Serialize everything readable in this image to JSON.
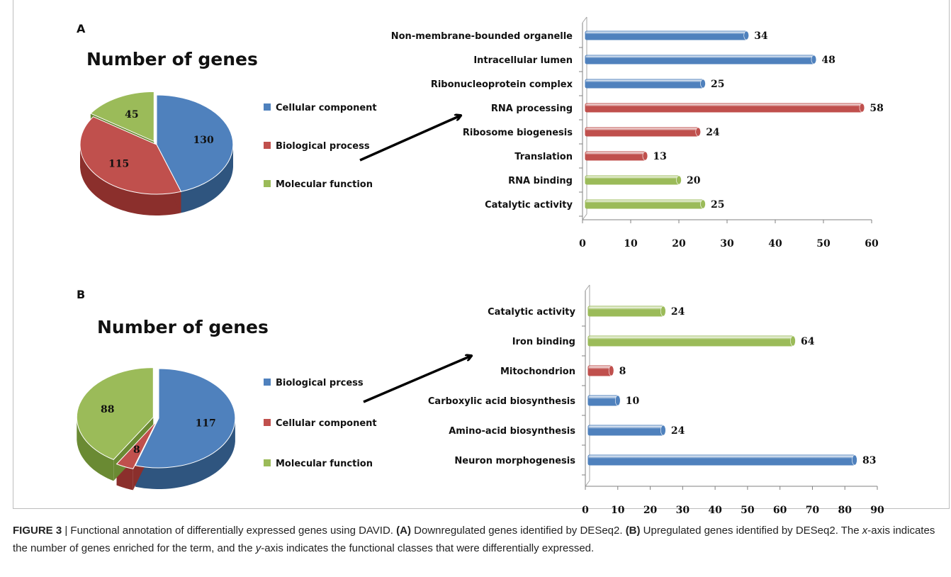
{
  "figure": {
    "panels": [
      {
        "id": "A",
        "label": "A",
        "pie": {
          "title": "Number of genes",
          "slices": [
            {
              "name": "Cellular component",
              "value": 130,
              "color": "#4f81bd",
              "side": "#2f557f"
            },
            {
              "name": "Biological process",
              "value": 115,
              "color": "#c0504d",
              "side": "#8b2f2c"
            },
            {
              "name": "Molecular function",
              "value": 45,
              "color": "#9bbb59",
              "side": "#6a8a33"
            }
          ]
        },
        "bars": {
          "xlim": [
            0,
            60
          ],
          "ticks": [
            0,
            10,
            20,
            30,
            40,
            50,
            60
          ],
          "items": [
            {
              "label": "Non-membrane-bounded organelle",
              "value": 34,
              "color": "#4f81bd"
            },
            {
              "label": "Intracellular lumen",
              "value": 48,
              "color": "#4f81bd"
            },
            {
              "label": "Ribonucleoprotein complex",
              "value": 25,
              "color": "#4f81bd"
            },
            {
              "label": "RNA processing",
              "value": 58,
              "color": "#c0504d"
            },
            {
              "label": "Ribosome biogenesis",
              "value": 24,
              "color": "#c0504d"
            },
            {
              "label": "Translation",
              "value": 13,
              "color": "#c0504d"
            },
            {
              "label": "RNA binding",
              "value": 20,
              "color": "#9bbb59"
            },
            {
              "label": "Catalytic activity",
              "value": 25,
              "color": "#9bbb59"
            }
          ]
        }
      },
      {
        "id": "B",
        "label": "B",
        "pie": {
          "title": "Number of genes",
          "slices": [
            {
              "name": "Biological prcess",
              "value": 117,
              "color": "#4f81bd",
              "side": "#2f557f"
            },
            {
              "name": "Cellular component",
              "value": 8,
              "color": "#c0504d",
              "side": "#8b2f2c"
            },
            {
              "name": "Molecular function",
              "value": 88,
              "color": "#9bbb59",
              "side": "#6a8a33"
            }
          ]
        },
        "bars": {
          "xlim": [
            0,
            90
          ],
          "ticks": [
            0,
            10,
            20,
            30,
            40,
            50,
            60,
            70,
            80,
            90
          ],
          "items": [
            {
              "label": "Catalytic activity",
              "value": 24,
              "color": "#9bbb59"
            },
            {
              "label": "Iron binding",
              "value": 64,
              "color": "#9bbb59"
            },
            {
              "label": "Mitochondrion",
              "value": 8,
              "color": "#c0504d"
            },
            {
              "label": "Carboxylic acid biosynthesis",
              "value": 10,
              "color": "#4f81bd"
            },
            {
              "label": "Amino-acid biosynthesis",
              "value": 24,
              "color": "#4f81bd"
            },
            {
              "label": "Neuron morphogenesis",
              "value": 83,
              "color": "#4f81bd"
            }
          ]
        }
      }
    ]
  },
  "caption": {
    "fig_label": "FIGURE 3",
    "sep": " | ",
    "p1": "Functional annotation of differentially expressed genes using DAVID. ",
    "a_label": "(A)",
    "a_text": " Downregulated genes identified by DESeq2. ",
    "b_label": "(B)",
    "b_text": " Upregulated genes identified by DESeq2. The ",
    "x_word": "x",
    "p2": "-axis indicates the number of genes enriched for the term, and the ",
    "y_word": "y",
    "p3": "-axis indicates the functional classes that were differentially expressed."
  },
  "chart_data": [
    {
      "type": "pie",
      "title": "Number of genes",
      "categories": [
        "Cellular component",
        "Biological process",
        "Molecular function"
      ],
      "values": [
        130,
        115,
        45
      ],
      "legend": "right"
    },
    {
      "type": "bar",
      "orientation": "horizontal",
      "categories": [
        "Non-membrane-bounded organelle",
        "Intracellular lumen",
        "Ribonucleoprotein complex",
        "RNA processing",
        "Ribosome biogenesis",
        "Translation",
        "RNA binding",
        "Catalytic activity"
      ],
      "values": [
        34,
        48,
        25,
        58,
        24,
        13,
        20,
        25
      ],
      "xlim": [
        0,
        60
      ],
      "xlabel": "",
      "ylabel": "",
      "grid": false
    },
    {
      "type": "pie",
      "title": "Number of genes",
      "categories": [
        "Biological prcess",
        "Cellular component",
        "Molecular function"
      ],
      "values": [
        117,
        8,
        88
      ],
      "legend": "right"
    },
    {
      "type": "bar",
      "orientation": "horizontal",
      "categories": [
        "Catalytic activity",
        "Iron binding",
        "Mitochondrion",
        "Carboxylic acid biosynthesis",
        "Amino-acid biosynthesis",
        "Neuron morphogenesis"
      ],
      "values": [
        24,
        64,
        8,
        10,
        24,
        83
      ],
      "xlim": [
        0,
        90
      ],
      "xlabel": "",
      "ylabel": "",
      "grid": false
    }
  ]
}
